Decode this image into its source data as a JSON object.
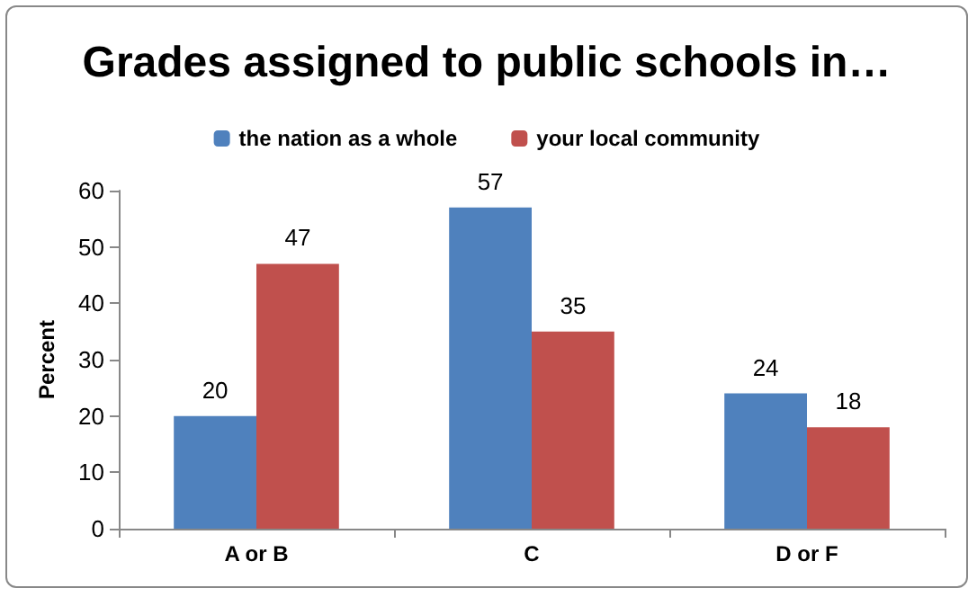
{
  "chart_data": {
    "type": "bar",
    "title": "Grades assigned to public schools in…",
    "ylabel": "Percent",
    "categories": [
      "A or B",
      "C",
      "D or F"
    ],
    "series": [
      {
        "name": "the nation as a whole",
        "color": "#4f81bd",
        "values": [
          20,
          57,
          24
        ]
      },
      {
        "name": "your local community",
        "color": "#c0504d",
        "values": [
          47,
          35,
          18
        ]
      }
    ],
    "ylim": [
      0,
      60
    ],
    "yticks": [
      0,
      10,
      20,
      30,
      40,
      50,
      60
    ],
    "data_labels": true,
    "legend": "top",
    "grid": false
  }
}
